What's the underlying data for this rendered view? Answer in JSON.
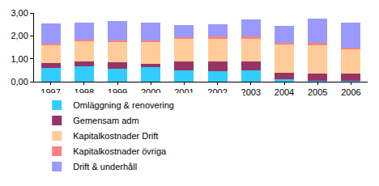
{
  "chart_data": {
    "type": "bar",
    "stacked": true,
    "grid": false,
    "legend": "bottom",
    "categories": [
      "1997",
      "1998",
      "1999",
      "2000",
      "2001",
      "2002",
      "2003",
      "2004",
      "2005",
      "2006"
    ],
    "ylim": [
      0,
      3
    ],
    "yticks": [
      {
        "value": 0,
        "label": "0,00"
      },
      {
        "value": 1,
        "label": "1,00"
      },
      {
        "value": 2,
        "label": "2,00"
      },
      {
        "value": 3,
        "label": "3,00"
      }
    ],
    "series": [
      {
        "name": "Omläggning & renovering",
        "color": "#33ccff",
        "values": [
          0.6,
          0.67,
          0.58,
          0.62,
          0.48,
          0.47,
          0.48,
          0.12,
          0.02,
          0.02
        ]
      },
      {
        "name": "Gemensam adm",
        "color": "#993366",
        "values": [
          0.22,
          0.22,
          0.25,
          0.17,
          0.4,
          0.4,
          0.4,
          0.28,
          0.33,
          0.33
        ]
      },
      {
        "name": "Kapitalkostnader Drift",
        "color": "#ffcc99",
        "values": [
          0.76,
          0.88,
          0.9,
          0.93,
          0.98,
          1.01,
          1.0,
          1.22,
          1.25,
          1.07
        ]
      },
      {
        "name": "Kapitalkostnader övriga",
        "color": "#ff8080",
        "values": [
          0.07,
          0.08,
          0.07,
          0.08,
          0.09,
          0.08,
          0.08,
          0.06,
          0.08,
          0.08
        ]
      },
      {
        "name": "Drift & underhåll",
        "color": "#9999ff",
        "values": [
          0.88,
          0.73,
          0.83,
          0.78,
          0.53,
          0.55,
          0.76,
          0.75,
          1.08,
          1.08
        ]
      }
    ]
  }
}
